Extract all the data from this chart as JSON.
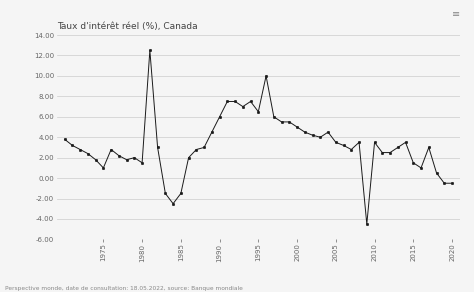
{
  "title": "Taux d'intérêt réel (%), Canada",
  "footnote": "Perspective monde, date de consultation: 18.05.2022, source: Banque mondiale",
  "years": [
    1970,
    1971,
    1972,
    1973,
    1974,
    1975,
    1976,
    1977,
    1978,
    1979,
    1980,
    1981,
    1982,
    1983,
    1984,
    1985,
    1986,
    1987,
    1988,
    1989,
    1990,
    1991,
    1992,
    1993,
    1994,
    1995,
    1996,
    1997,
    1998,
    1999,
    2000,
    2001,
    2002,
    2003,
    2004,
    2005,
    2006,
    2007,
    2008,
    2009,
    2010,
    2011,
    2012,
    2013,
    2014,
    2015,
    2016,
    2017,
    2018,
    2019,
    2020
  ],
  "values": [
    3.8,
    3.2,
    2.8,
    2.4,
    1.8,
    1.0,
    2.8,
    2.2,
    1.8,
    2.0,
    1.5,
    12.5,
    3.0,
    -1.5,
    -2.5,
    -1.5,
    2.0,
    2.8,
    3.0,
    4.5,
    6.0,
    7.5,
    7.5,
    7.0,
    7.5,
    6.5,
    10.0,
    6.0,
    5.5,
    5.5,
    5.0,
    4.5,
    4.2,
    4.0,
    4.5,
    3.5,
    3.2,
    2.8,
    3.5,
    -4.5,
    3.5,
    2.5,
    2.5,
    3.0,
    3.5,
    1.5,
    1.0,
    3.0,
    0.5,
    -0.5,
    -0.5
  ],
  "line_color": "#1a1a1a",
  "marker_color": "#1a1a1a",
  "bg_color": "#f5f5f5",
  "grid_color": "#cccccc",
  "ylim": [
    -6.0,
    14.0
  ],
  "yticks": [
    -6.0,
    -4.0,
    -2.0,
    0.0,
    2.0,
    4.0,
    6.0,
    8.0,
    10.0,
    12.0,
    14.0
  ],
  "xticks": [
    1975,
    1980,
    1985,
    1990,
    1995,
    2000,
    2005,
    2010,
    2015,
    2020
  ],
  "title_fontsize": 6.5,
  "tick_fontsize": 5.0,
  "footnote_fontsize": 4.2
}
